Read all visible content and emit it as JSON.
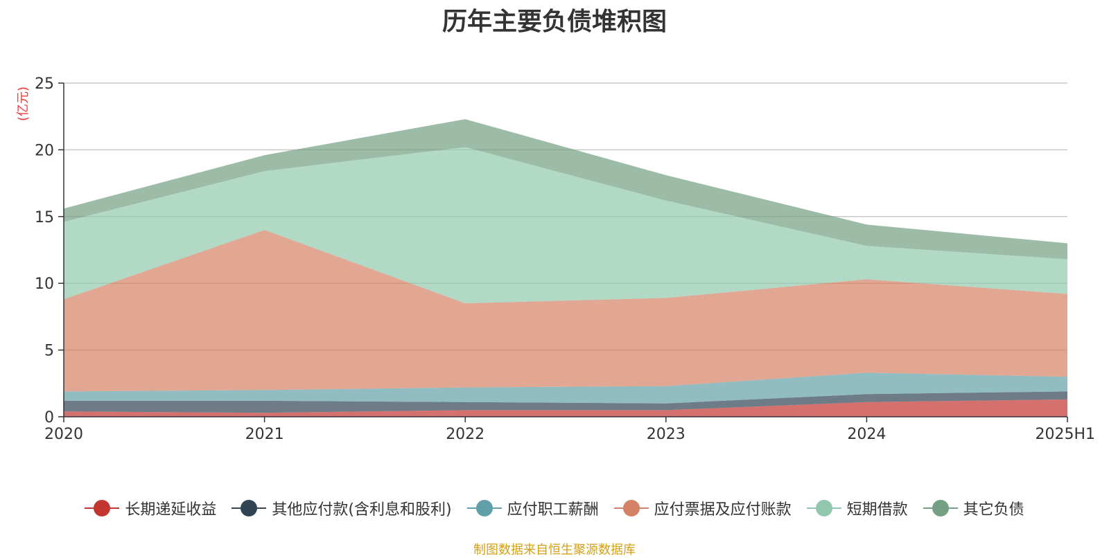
{
  "chart_data": {
    "type": "area",
    "stacked": true,
    "title": "历年主要负债堆积图",
    "unit_label": "(亿元)",
    "categories": [
      "2020",
      "2021",
      "2022",
      "2023",
      "2024",
      "2025H1"
    ],
    "ylim": [
      0,
      25
    ],
    "yticks": [
      0,
      5,
      10,
      15,
      20,
      25
    ],
    "grid": true,
    "legend_position": "bottom",
    "series": [
      {
        "name": "长期递延收益",
        "color": "#c23531",
        "values": [
          0.4,
          0.3,
          0.5,
          0.5,
          1.1,
          1.3
        ]
      },
      {
        "name": "其他应付款(含利息和股利)",
        "color": "#2f4554",
        "values": [
          0.8,
          0.9,
          0.6,
          0.5,
          0.6,
          0.6
        ]
      },
      {
        "name": "应付职工薪酬",
        "color": "#61a0a8",
        "values": [
          0.7,
          0.8,
          1.1,
          1.3,
          1.6,
          1.1
        ]
      },
      {
        "name": "应付票据及应付账款",
        "color": "#d48265",
        "values": [
          6.9,
          12.0,
          6.3,
          6.6,
          7.0,
          6.2
        ]
      },
      {
        "name": "短期借款",
        "color": "#91c7ae",
        "values": [
          5.8,
          4.4,
          11.7,
          7.3,
          2.5,
          2.6
        ]
      },
      {
        "name": "其它负债",
        "color": "#749f83",
        "values": [
          1.0,
          1.2,
          2.1,
          1.9,
          1.6,
          1.2
        ]
      }
    ],
    "source_note": "制图数据来自恒生聚源数据库"
  }
}
